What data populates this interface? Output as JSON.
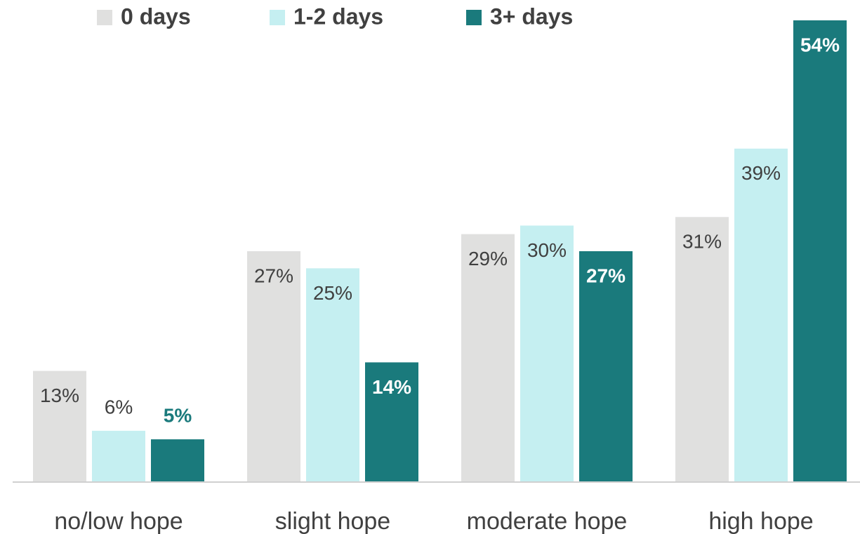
{
  "chart_data": {
    "type": "bar",
    "categories": [
      "no/low hope",
      "slight hope",
      "moderate hope",
      "high hope"
    ],
    "series": [
      {
        "name": "0 days",
        "color": "#e0e0df",
        "values": [
          13,
          27,
          29,
          31
        ],
        "value_labels": [
          "13%",
          "27%",
          "29%",
          "31%"
        ]
      },
      {
        "name": "1-2 days",
        "color": "#c5eff1",
        "values": [
          6,
          25,
          30,
          39
        ],
        "value_labels": [
          "6%",
          "25%",
          "30%",
          "39%"
        ]
      },
      {
        "name": "3+ days",
        "color": "#1a7a7c",
        "values": [
          5,
          14,
          27,
          54
        ],
        "value_labels": [
          "5%",
          "14%",
          "27%",
          "54%"
        ]
      }
    ],
    "legend": "top"
  }
}
